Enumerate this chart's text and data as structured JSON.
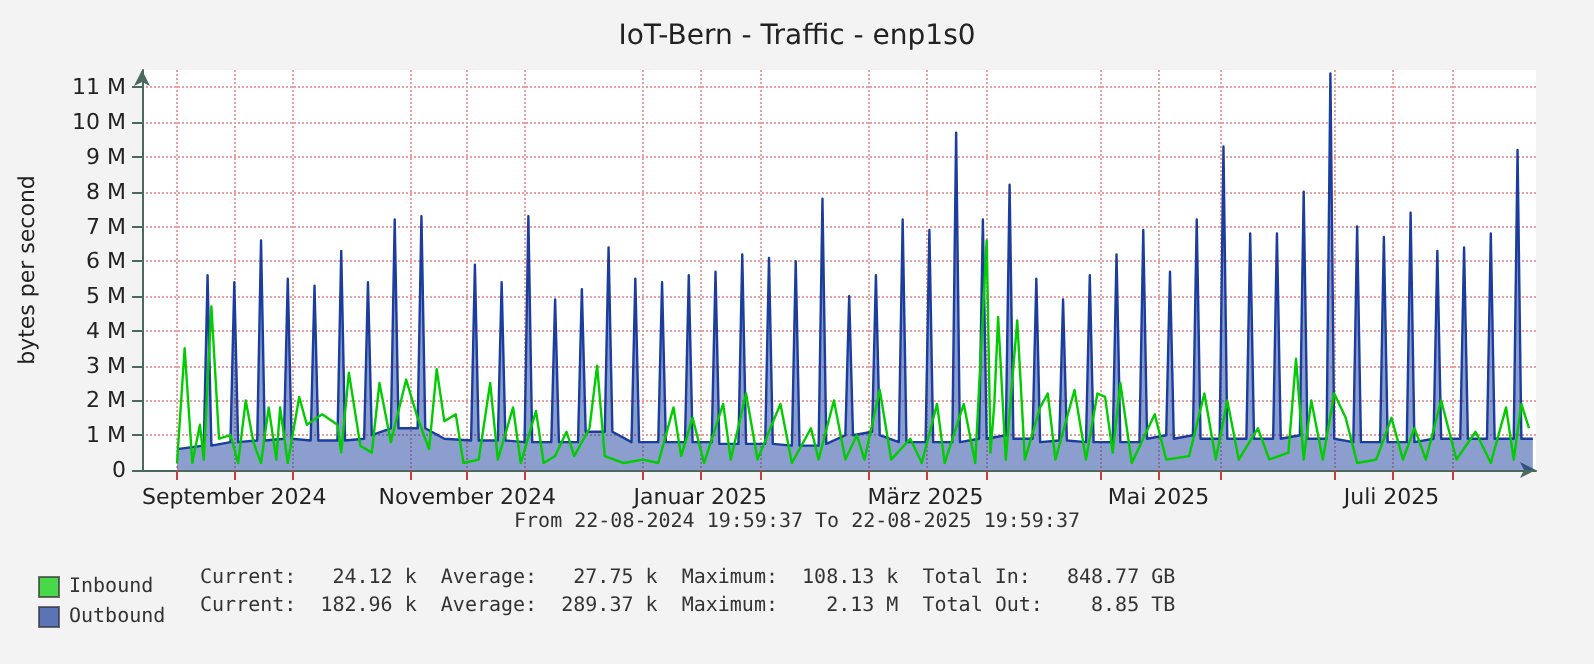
{
  "chart_data": {
    "type": "line",
    "title": "IoT-Bern - Traffic - enp1s0",
    "ylabel": "bytes per second",
    "xlim": [
      "2024-08-22T19:59",
      "2025-08-22T19:59"
    ],
    "xticks": [
      {
        "value": "2024-09-01",
        "label": null
      },
      {
        "value": "2024-09-16",
        "label": "September 2024"
      },
      {
        "value": "2024-10-01",
        "label": null
      },
      {
        "value": "2024-11-01",
        "label": null
      },
      {
        "value": "2024-11-16",
        "label": "November 2024"
      },
      {
        "value": "2024-12-01",
        "label": null
      },
      {
        "value": "2025-01-01",
        "label": null
      },
      {
        "value": "2025-01-16",
        "label": "Januar 2025"
      },
      {
        "value": "2025-02-01",
        "label": null
      },
      {
        "value": "2025-03-01",
        "label": null
      },
      {
        "value": "2025-03-16",
        "label": "März 2025"
      },
      {
        "value": "2025-04-01",
        "label": null
      },
      {
        "value": "2025-05-01",
        "label": null
      },
      {
        "value": "2025-05-16",
        "label": "Mai 2025"
      },
      {
        "value": "2025-06-01",
        "label": null
      },
      {
        "value": "2025-07-01",
        "label": null
      },
      {
        "value": "2025-07-16",
        "label": "Juli 2025"
      },
      {
        "value": "2025-08-01",
        "label": null
      }
    ],
    "ylim": [
      0,
      11.5
    ],
    "yticks": [
      0,
      {
        "value": 1,
        "label": "1 M"
      },
      {
        "value": 2,
        "label": "2 M"
      },
      {
        "value": 3,
        "label": "3 M"
      },
      {
        "value": 4,
        "label": "4 M"
      },
      {
        "value": 5,
        "label": "5 M"
      },
      {
        "value": 6,
        "label": "6 M"
      },
      {
        "value": 7,
        "label": "7 M"
      },
      {
        "value": 8,
        "label": "8 M"
      },
      {
        "value": 9,
        "label": "9 M"
      },
      {
        "value": 10,
        "label": "10 M"
      },
      {
        "value": 11,
        "label": "11 M"
      }
    ],
    "grid": true,
    "legend": "bottom left",
    "marker": "none",
    "annotations": [
      "From 22-08-2024 19:59:37 To 22-08-2025 19:59:37",
      "Current:   24.12 k  Average:   27.75 k  Maximum:  108.13 k  Total In:   848.77 GB",
      "Current:  182.96 k  Average:  289.37 k  Maximum:    2.13 M  Total Out:    8.85 TB"
    ],
    "series": [
      {
        "name": "Inbound",
        "color": "#00cc00",
        "x": [
          "2024-09-01",
          "2024-09-03",
          "2024-09-05",
          "2024-09-07",
          "2024-09-08",
          "2024-09-10",
          "2024-09-12",
          "2024-09-15",
          "2024-09-17",
          "2024-09-19",
          "2024-09-21",
          "2024-09-23",
          "2024-09-25",
          "2024-09-27",
          "2024-09-28",
          "2024-09-30",
          "2024-10-03",
          "2024-10-05",
          "2024-10-09",
          "2024-10-13",
          "2024-10-14",
          "2024-10-16",
          "2024-10-19",
          "2024-10-22",
          "2024-10-24",
          "2024-10-27",
          "2024-10-31",
          "2024-11-03",
          "2024-11-06",
          "2024-11-08",
          "2024-11-10",
          "2024-11-13",
          "2024-11-15",
          "2024-11-19",
          "2024-11-22",
          "2024-11-24",
          "2024-11-28",
          "2024-11-30",
          "2024-12-04",
          "2024-12-06",
          "2024-12-09",
          "2024-12-12",
          "2024-12-14",
          "2024-12-18",
          "2024-12-20",
          "2024-12-22",
          "2024-12-27",
          "2025-01-01",
          "2025-01-05",
          "2025-01-09",
          "2025-01-11",
          "2025-01-14",
          "2025-01-17",
          "2025-01-22",
          "2025-01-24",
          "2025-01-28",
          "2025-01-31",
          "2025-02-06",
          "2025-02-09",
          "2025-02-14",
          "2025-02-16",
          "2025-02-20",
          "2025-02-23",
          "2025-02-26",
          "2025-02-28",
          "2025-03-04",
          "2025-03-07",
          "2025-03-12",
          "2025-03-15",
          "2025-03-19",
          "2025-03-21",
          "2025-03-26",
          "2025-03-29",
          "2025-04-01",
          "2025-04-02",
          "2025-04-03",
          "2025-04-04",
          "2025-04-06",
          "2025-04-09",
          "2025-04-11",
          "2025-04-15",
          "2025-04-17",
          "2025-04-19",
          "2025-04-24",
          "2025-04-27",
          "2025-04-30",
          "2025-05-02",
          "2025-05-04",
          "2025-05-06",
          "2025-05-09",
          "2025-05-15",
          "2025-05-18",
          "2025-05-24",
          "2025-05-28",
          "2025-05-31",
          "2025-06-03",
          "2025-06-06",
          "2025-06-11",
          "2025-06-14",
          "2025-06-19",
          "2025-06-21",
          "2025-06-23",
          "2025-06-25",
          "2025-06-28",
          "2025-07-01",
          "2025-07-04",
          "2025-07-07",
          "2025-07-12",
          "2025-07-16",
          "2025-07-19",
          "2025-07-22",
          "2025-07-25",
          "2025-07-29",
          "2025-08-02",
          "2025-08-07",
          "2025-08-11",
          "2025-08-15",
          "2025-08-17",
          "2025-08-19",
          "2025-08-21"
        ],
        "values": [
          0.2,
          3.5,
          0.2,
          1.3,
          0.3,
          4.7,
          0.9,
          1.0,
          0.2,
          2.0,
          0.8,
          0.2,
          1.8,
          0.3,
          1.8,
          0.2,
          2.1,
          1.3,
          1.6,
          1.3,
          0.5,
          2.8,
          0.7,
          0.5,
          2.5,
          0.8,
          2.6,
          1.5,
          0.6,
          2.9,
          1.4,
          1.6,
          0.2,
          0.3,
          2.5,
          0.3,
          1.8,
          0.2,
          1.7,
          0.2,
          0.4,
          1.1,
          0.4,
          1.2,
          3.0,
          0.4,
          0.2,
          0.3,
          0.2,
          1.8,
          0.4,
          1.5,
          0.2,
          1.9,
          0.3,
          2.2,
          0.3,
          1.9,
          0.2,
          1.2,
          0.3,
          2.0,
          0.3,
          1.0,
          0.3,
          2.3,
          0.3,
          0.9,
          0.2,
          1.9,
          0.2,
          1.9,
          0.2,
          6.6,
          0.5,
          1.9,
          4.4,
          0.3,
          4.3,
          0.3,
          1.8,
          2.2,
          0.3,
          2.3,
          0.3,
          2.2,
          2.1,
          0.5,
          2.5,
          0.2,
          1.6,
          0.3,
          0.4,
          2.2,
          0.3,
          2.0,
          0.3,
          1.2,
          0.3,
          0.5,
          3.2,
          0.3,
          2.0,
          0.3,
          2.2,
          1.5,
          0.2,
          0.3,
          1.5,
          0.3,
          1.2,
          0.3,
          2.0,
          0.3,
          1.1,
          0.2,
          1.8,
          0.3,
          1.9,
          1.2
        ]
      },
      {
        "name": "Outbound",
        "type": "area",
        "color": "#1a3d9e",
        "x": [
          "2024-09-01",
          "2024-09-08",
          "2024-09-09",
          "2024-09-10",
          "2024-09-15",
          "2024-09-16",
          "2024-09-17",
          "2024-09-22",
          "2024-09-23",
          "2024-09-24",
          "2024-09-29",
          "2024-09-30",
          "2024-10-01",
          "2024-10-06",
          "2024-10-07",
          "2024-10-08",
          "2024-10-13",
          "2024-10-14",
          "2024-10-15",
          "2024-10-20",
          "2024-10-21",
          "2024-10-22",
          "2024-10-27",
          "2024-10-28",
          "2024-10-29",
          "2024-11-03",
          "2024-11-04",
          "2024-11-05",
          "2024-11-10",
          "2024-11-17",
          "2024-11-18",
          "2024-11-19",
          "2024-11-24",
          "2024-11-25",
          "2024-11-26",
          "2024-12-01",
          "2024-12-02",
          "2024-12-03",
          "2024-12-08",
          "2024-12-09",
          "2024-12-10",
          "2024-12-15",
          "2024-12-16",
          "2024-12-17",
          "2024-12-22",
          "2024-12-23",
          "2024-12-24",
          "2024-12-29",
          "2024-12-30",
          "2024-12-31",
          "2025-01-05",
          "2025-01-06",
          "2025-01-07",
          "2025-01-12",
          "2025-01-13",
          "2025-01-14",
          "2025-01-19",
          "2025-01-20",
          "2025-01-21",
          "2025-01-26",
          "2025-01-27",
          "2025-01-28",
          "2025-02-02",
          "2025-02-03",
          "2025-02-04",
          "2025-02-09",
          "2025-02-10",
          "2025-02-11",
          "2025-02-16",
          "2025-02-17",
          "2025-02-18",
          "2025-02-23",
          "2025-02-24",
          "2025-02-25",
          "2025-03-02",
          "2025-03-03",
          "2025-03-04",
          "2025-03-09",
          "2025-03-10",
          "2025-03-11",
          "2025-03-16",
          "2025-03-17",
          "2025-03-18",
          "2025-03-23",
          "2025-03-24",
          "2025-03-25",
          "2025-03-30",
          "2025-03-31",
          "2025-04-01",
          "2025-04-06",
          "2025-04-07",
          "2025-04-08",
          "2025-04-13",
          "2025-04-14",
          "2025-04-15",
          "2025-04-20",
          "2025-04-21",
          "2025-04-22",
          "2025-04-27",
          "2025-04-28",
          "2025-04-29",
          "2025-05-04",
          "2025-05-05",
          "2025-05-06",
          "2025-05-11",
          "2025-05-12",
          "2025-05-13",
          "2025-05-18",
          "2025-05-19",
          "2025-05-20",
          "2025-05-25",
          "2025-05-26",
          "2025-05-27",
          "2025-06-01",
          "2025-06-02",
          "2025-06-03",
          "2025-06-08",
          "2025-06-09",
          "2025-06-10",
          "2025-06-15",
          "2025-06-16",
          "2025-06-17",
          "2025-06-22",
          "2025-06-23",
          "2025-06-24",
          "2025-06-29",
          "2025-06-30",
          "2025-07-01",
          "2025-07-06",
          "2025-07-07",
          "2025-07-08",
          "2025-07-13",
          "2025-07-14",
          "2025-07-15",
          "2025-07-20",
          "2025-07-21",
          "2025-07-22",
          "2025-07-27",
          "2025-07-28",
          "2025-07-29",
          "2025-08-03",
          "2025-08-04",
          "2025-08-05",
          "2025-08-10",
          "2025-08-11",
          "2025-08-12",
          "2025-08-17",
          "2025-08-18",
          "2025-08-19",
          "2025-08-22"
        ],
        "values": [
          0.6,
          0.7,
          5.6,
          0.7,
          0.8,
          5.4,
          0.8,
          0.85,
          6.6,
          0.85,
          0.9,
          5.5,
          0.9,
          0.85,
          5.3,
          0.85,
          0.85,
          6.3,
          0.85,
          0.9,
          5.4,
          1.0,
          1.2,
          7.2,
          1.2,
          1.2,
          7.3,
          1.2,
          0.9,
          0.85,
          5.9,
          0.85,
          0.85,
          5.4,
          0.85,
          0.8,
          7.3,
          0.8,
          0.8,
          4.9,
          0.8,
          0.8,
          5.2,
          1.1,
          1.1,
          6.4,
          1.1,
          0.8,
          5.5,
          0.8,
          0.8,
          5.4,
          0.8,
          0.8,
          5.6,
          0.8,
          0.8,
          5.7,
          0.75,
          0.75,
          6.2,
          0.75,
          0.75,
          6.1,
          0.75,
          0.7,
          6.0,
          0.7,
          0.7,
          7.8,
          0.75,
          1.0,
          5.0,
          1.0,
          1.1,
          5.6,
          1.0,
          0.8,
          7.2,
          0.8,
          0.8,
          6.9,
          0.8,
          0.8,
          9.7,
          0.8,
          0.9,
          7.2,
          0.9,
          1.0,
          8.2,
          0.9,
          0.9,
          5.5,
          0.8,
          0.85,
          4.9,
          0.85,
          0.8,
          5.6,
          0.8,
          0.8,
          6.2,
          0.8,
          0.8,
          6.9,
          0.9,
          1.0,
          5.7,
          0.9,
          1.0,
          7.2,
          0.9,
          0.9,
          9.3,
          0.9,
          0.9,
          6.8,
          0.9,
          0.9,
          6.8,
          0.9,
          1.0,
          8.0,
          0.9,
          0.9,
          11.4,
          0.9,
          0.8,
          7.0,
          0.8,
          0.8,
          6.7,
          0.8,
          0.8,
          7.4,
          0.8,
          0.9,
          6.3,
          0.9,
          0.9,
          6.4,
          0.9,
          0.9,
          6.8,
          0.9,
          0.9,
          9.2,
          0.9,
          0.9
        ]
      }
    ]
  }
}
